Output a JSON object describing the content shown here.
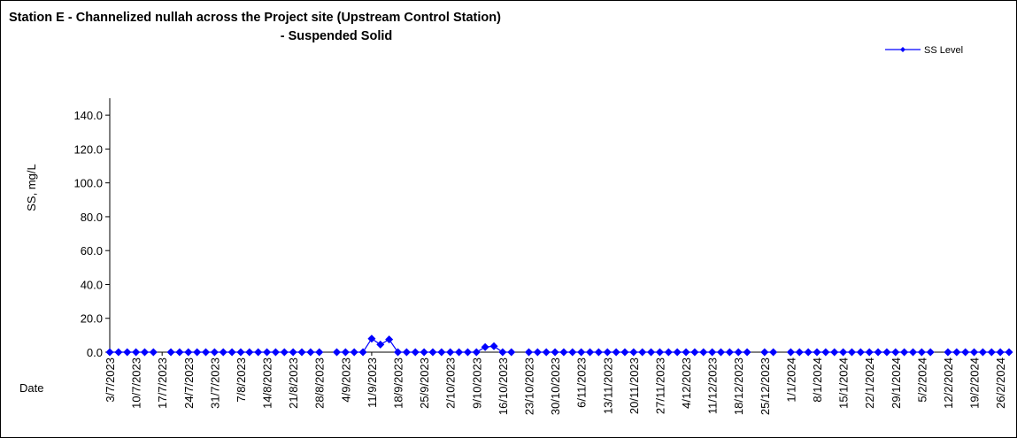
{
  "chart_data": {
    "type": "line",
    "title": [
      "Station E - Channelized nullah across the Project site (Upstream Control Station)",
      "- Suspended Solid"
    ],
    "ylabel": "SS, mg/L",
    "xlabel": "Date",
    "legend": "upper right",
    "categories": [
      "3/7/2023",
      null,
      null,
      "10/7/2023",
      null,
      null,
      "17/7/2023",
      null,
      null,
      "24/7/2023",
      null,
      null,
      "31/7/2023",
      null,
      null,
      "7/8/2023",
      null,
      null,
      "14/8/2023",
      null,
      null,
      "21/8/2023",
      null,
      null,
      "28/8/2023",
      null,
      null,
      "4/9/2023",
      null,
      null,
      "11/9/2023",
      null,
      null,
      "18/9/2023",
      null,
      null,
      "25/9/2023",
      null,
      null,
      "2/10/2023",
      null,
      null,
      "9/10/2023",
      null,
      null,
      "16/10/2023",
      null,
      null,
      "23/10/2023",
      null,
      null,
      "30/10/2023",
      null,
      null,
      "6/11/2023",
      null,
      null,
      "13/11/2023",
      null,
      null,
      "20/11/2023",
      null,
      null,
      "27/11/2023",
      null,
      null,
      "4/12/2023",
      null,
      null,
      "11/12/2023",
      null,
      null,
      "18/12/2023",
      null,
      null,
      "25/12/2023",
      null,
      null,
      "1/1/2024",
      null,
      null,
      "8/1/2024",
      null,
      null,
      "15/1/2024",
      null,
      null,
      "22/1/2024",
      null,
      null,
      "29/1/2024",
      null,
      null,
      "5/2/2024",
      null,
      null,
      "12/2/2024",
      null,
      null,
      "19/2/2024",
      null,
      null,
      "26/2/2024",
      null
    ],
    "series": [
      {
        "name": "SS Level",
        "color": "#0000ff",
        "values": [
          0,
          0,
          0,
          0,
          0,
          0,
          null,
          0,
          0,
          0,
          0,
          0,
          0,
          0,
          0,
          0,
          0,
          0,
          0,
          0,
          0,
          0,
          0,
          0,
          0,
          null,
          0,
          0,
          0,
          0,
          8,
          4.5,
          7.5,
          0,
          0,
          0,
          0,
          0,
          0,
          0,
          0,
          0,
          0,
          3,
          3.5,
          0,
          0,
          null,
          0,
          0,
          0,
          0,
          0,
          0,
          0,
          0,
          0,
          0,
          0,
          0,
          0,
          0,
          0,
          0,
          0,
          0,
          0,
          0,
          0,
          0,
          0,
          0,
          0,
          0,
          null,
          0,
          0,
          null,
          0,
          0,
          0,
          0,
          0,
          0,
          0,
          0,
          0,
          0,
          0,
          0,
          0,
          0,
          0,
          0,
          0,
          null,
          0,
          0,
          0,
          0,
          0,
          0,
          0,
          0
        ]
      }
    ],
    "ylim": [
      0,
      150
    ],
    "yticks": [
      {
        "value": 0,
        "label": "0.0"
      },
      {
        "value": 20,
        "label": "20.0"
      },
      {
        "value": 40,
        "label": "40.0"
      },
      {
        "value": 60,
        "label": "60.0"
      },
      {
        "value": 80,
        "label": "80.0"
      },
      {
        "value": 100,
        "label": "100.0"
      },
      {
        "value": 120,
        "label": "120.0"
      },
      {
        "value": 140,
        "label": "140.0"
      }
    ]
  }
}
